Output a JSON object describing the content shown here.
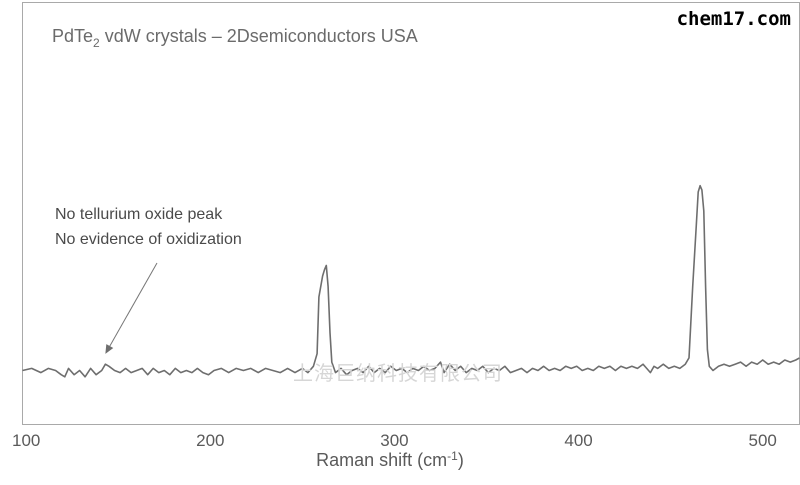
{
  "chart_data": {
    "type": "line",
    "title_main": "PdTe",
    "title_sub": "2",
    "title_rest": " vdW crystals – 2Dsemiconductors USA",
    "xlabel_main": "Raman shift (cm",
    "xlabel_sup": "-1",
    "xlabel_end": ")",
    "ylabel": "",
    "xlim": [
      98,
      520
    ],
    "ylim": [
      -15,
      105
    ],
    "xticks": [
      100,
      200,
      300,
      400,
      500
    ],
    "grid": false,
    "annotation": {
      "lines": [
        "No tellurium oxide peak",
        "No evidence of oxidization"
      ],
      "points_to_x": 143,
      "points_to_y": 6
    },
    "series": [
      {
        "values": [
          [
            98,
            0
          ],
          [
            103,
            1
          ],
          [
            108,
            -1
          ],
          [
            112,
            1
          ],
          [
            116,
            0
          ],
          [
            119,
            -2
          ],
          [
            121,
            -3
          ],
          [
            123,
            1
          ],
          [
            126,
            -2
          ],
          [
            129,
            0
          ],
          [
            132,
            -3
          ],
          [
            135,
            1
          ],
          [
            138,
            -2
          ],
          [
            141,
            0
          ],
          [
            143,
            3
          ],
          [
            145,
            2
          ],
          [
            148,
            0
          ],
          [
            151,
            -1
          ],
          [
            154,
            1
          ],
          [
            157,
            -1
          ],
          [
            160,
            0
          ],
          [
            163,
            1
          ],
          [
            166,
            -2
          ],
          [
            169,
            1
          ],
          [
            172,
            -1
          ],
          [
            175,
            0
          ],
          [
            178,
            -2
          ],
          [
            181,
            1
          ],
          [
            184,
            -1
          ],
          [
            187,
            0
          ],
          [
            190,
            -1
          ],
          [
            193,
            1
          ],
          [
            196,
            -1
          ],
          [
            199,
            -2
          ],
          [
            202,
            0
          ],
          [
            206,
            1
          ],
          [
            210,
            -1
          ],
          [
            214,
            1
          ],
          [
            218,
            0
          ],
          [
            222,
            1
          ],
          [
            226,
            -1
          ],
          [
            230,
            1
          ],
          [
            234,
            0
          ],
          [
            238,
            -1
          ],
          [
            242,
            1
          ],
          [
            246,
            -1
          ],
          [
            250,
            1
          ],
          [
            253,
            -1
          ],
          [
            256,
            2
          ],
          [
            258,
            8
          ],
          [
            259,
            35
          ],
          [
            261,
            45
          ],
          [
            262,
            48
          ],
          [
            263,
            50
          ],
          [
            264,
            40
          ],
          [
            265,
            18
          ],
          [
            266,
            4
          ],
          [
            268,
            -1
          ],
          [
            271,
            1
          ],
          [
            274,
            -2
          ],
          [
            277,
            0
          ],
          [
            280,
            1
          ],
          [
            283,
            -1
          ],
          [
            286,
            2
          ],
          [
            289,
            -1
          ],
          [
            292,
            1
          ],
          [
            295,
            -1
          ],
          [
            298,
            2
          ],
          [
            301,
            0
          ],
          [
            304,
            1
          ],
          [
            307,
            -1
          ],
          [
            310,
            1
          ],
          [
            313,
            0
          ],
          [
            316,
            2
          ],
          [
            319,
            0
          ],
          [
            322,
            1
          ],
          [
            325,
            4
          ],
          [
            327,
            -1
          ],
          [
            330,
            3
          ],
          [
            333,
            0
          ],
          [
            336,
            2
          ],
          [
            339,
            -1
          ],
          [
            342,
            1
          ],
          [
            345,
            0
          ],
          [
            348,
            2
          ],
          [
            351,
            -1
          ],
          [
            354,
            1
          ],
          [
            357,
            0
          ],
          [
            360,
            2
          ],
          [
            363,
            -1
          ],
          [
            366,
            0
          ],
          [
            369,
            1
          ],
          [
            372,
            -1
          ],
          [
            375,
            1
          ],
          [
            378,
            0
          ],
          [
            381,
            2
          ],
          [
            384,
            0
          ],
          [
            387,
            1
          ],
          [
            390,
            0
          ],
          [
            393,
            2
          ],
          [
            396,
            1
          ],
          [
            399,
            2
          ],
          [
            402,
            0
          ],
          [
            405,
            1
          ],
          [
            408,
            0
          ],
          [
            411,
            2
          ],
          [
            414,
            1
          ],
          [
            417,
            2
          ],
          [
            420,
            0
          ],
          [
            423,
            2
          ],
          [
            426,
            1
          ],
          [
            429,
            2
          ],
          [
            432,
            1
          ],
          [
            435,
            3
          ],
          [
            437,
            1
          ],
          [
            439,
            -1
          ],
          [
            441,
            2
          ],
          [
            443,
            1
          ],
          [
            446,
            3
          ],
          [
            449,
            1
          ],
          [
            452,
            2
          ],
          [
            455,
            1
          ],
          [
            458,
            3
          ],
          [
            460,
            6
          ],
          [
            462,
            40
          ],
          [
            464,
            70
          ],
          [
            465,
            85
          ],
          [
            466,
            88
          ],
          [
            467,
            86
          ],
          [
            468,
            76
          ],
          [
            469,
            40
          ],
          [
            470,
            10
          ],
          [
            471,
            2
          ],
          [
            473,
            0
          ],
          [
            476,
            2
          ],
          [
            479,
            3
          ],
          [
            482,
            2
          ],
          [
            485,
            3
          ],
          [
            488,
            4
          ],
          [
            491,
            2
          ],
          [
            494,
            4
          ],
          [
            497,
            3
          ],
          [
            500,
            5
          ],
          [
            503,
            3
          ],
          [
            506,
            4
          ],
          [
            509,
            3
          ],
          [
            512,
            5
          ],
          [
            515,
            4
          ],
          [
            518,
            5
          ],
          [
            520,
            6
          ]
        ]
      }
    ]
  },
  "watermark": {
    "center_text": "上海巨纳科技有限公司",
    "site_text": "chem17.com"
  }
}
